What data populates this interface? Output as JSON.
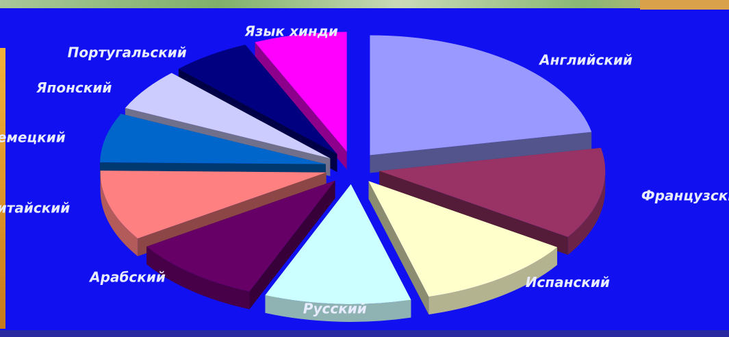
{
  "chart_data": {
    "type": "pie",
    "title": "",
    "slices": [
      {
        "label": "Английский",
        "value": 23,
        "color": "#9999ff"
      },
      {
        "label": "Французский",
        "value": 13,
        "color": "#993366"
      },
      {
        "label": "Испанский",
        "value": 12,
        "color": "#ffffcc"
      },
      {
        "label": "Русский",
        "value": 11,
        "color": "#ccffff"
      },
      {
        "label": "Арабский",
        "value": 10,
        "color": "#660066"
      },
      {
        "label": "Китайский",
        "value": 10,
        "color": "#ff8080"
      },
      {
        "label": "Немецкий",
        "value": 7,
        "color": "#0066cc"
      },
      {
        "label": "Японский",
        "value": 6,
        "color": "#ccccff"
      },
      {
        "label": "Португальский",
        "value": 6,
        "color": "#000080"
      },
      {
        "label": "Язык хинди",
        "value": 7,
        "color": "#ff00ff"
      }
    ],
    "legend": "none"
  }
}
